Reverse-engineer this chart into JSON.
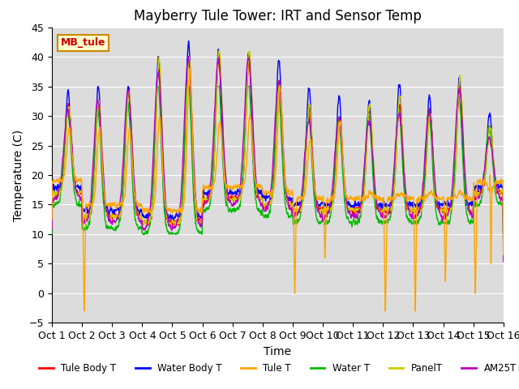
{
  "title": "Mayberry Tule Tower: IRT and Sensor Temp",
  "xlabel": "Time",
  "ylabel": "Temperature (C)",
  "ylim": [
    -5,
    45
  ],
  "yticks": [
    -5,
    0,
    5,
    10,
    15,
    20,
    25,
    30,
    35,
    40,
    45
  ],
  "xlim": [
    0,
    15
  ],
  "xtick_labels": [
    "Oct 1",
    "Oct 2",
    "Oct 3",
    "Oct 4",
    "Oct 5",
    "Oct 6",
    "Oct 7",
    "Oct 8",
    "Oct 9",
    "Oct 10",
    "Oct 11",
    "Oct 12",
    "Oct 13",
    "Oct 14",
    "Oct 15",
    "Oct 16"
  ],
  "xtick_positions": [
    0,
    1,
    2,
    3,
    4,
    5,
    6,
    7,
    8,
    9,
    10,
    11,
    12,
    13,
    14,
    15
  ],
  "series": {
    "Tule Body T": {
      "color": "#ff0000"
    },
    "Water Body T": {
      "color": "#0000ff"
    },
    "Tule T": {
      "color": "#ffa500"
    },
    "Water T": {
      "color": "#00bb00"
    },
    "PanelT": {
      "color": "#cccc00"
    },
    "AM25T": {
      "color": "#bb00bb"
    }
  },
  "legend_label": "MB_tule",
  "legend_bg": "#ffffcc",
  "legend_border": "#cc8800",
  "legend_text_color": "#cc0000",
  "background_color": "#dcdcdc",
  "grid_color": "#ffffff",
  "title_fontsize": 12,
  "axis_fontsize": 10,
  "tick_fontsize": 9
}
